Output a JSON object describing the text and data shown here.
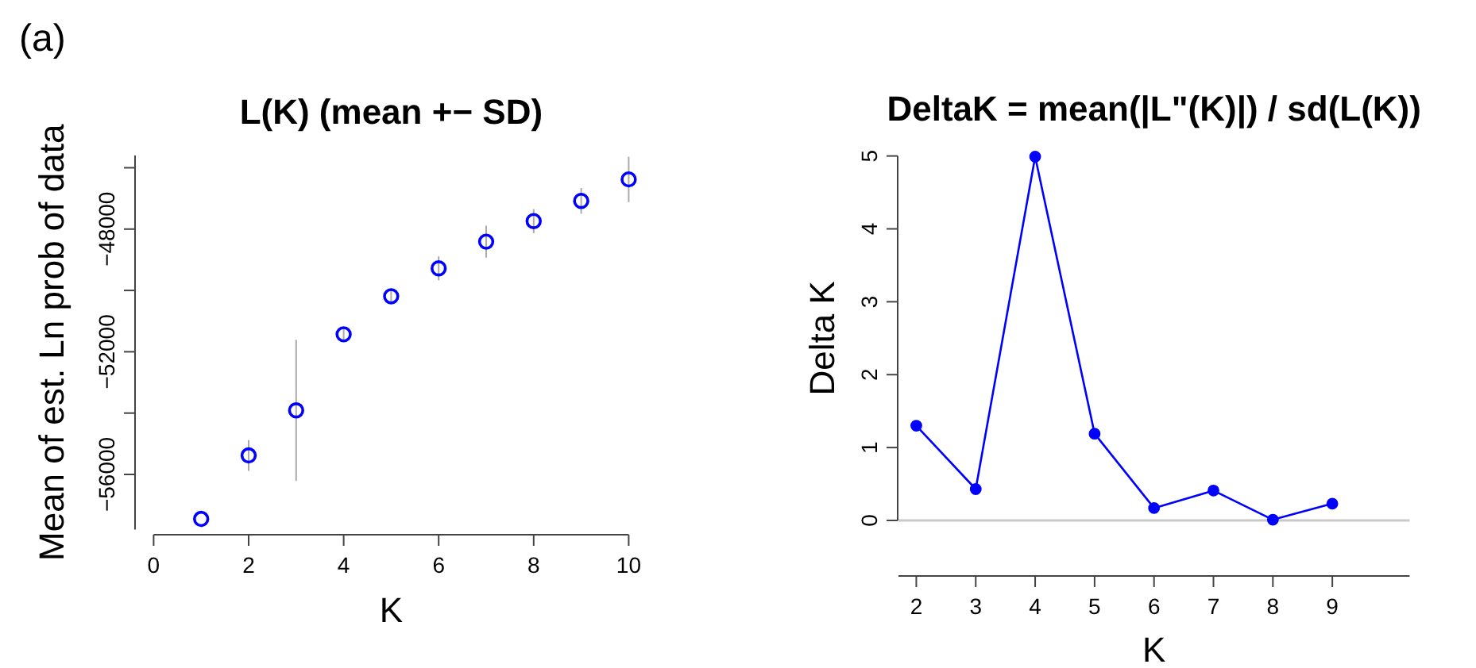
{
  "chart_data": [
    {
      "type": "scatter",
      "title": "L(K) (mean +− SD)",
      "xlabel": "K",
      "ylabel": "Mean of est. Ln prob of data",
      "annotations": [
        "(a)"
      ],
      "x": [
        1,
        2,
        3,
        4,
        5,
        6,
        7,
        8,
        9,
        10
      ],
      "series": [
        {
          "color": "#0000ff",
          "values": [
            -57450,
            -55380,
            -53910,
            -51430,
            -50190,
            -49280,
            -48410,
            -47740,
            -47080,
            -46380
          ],
          "errors": [
            null,
            500,
            2300,
            200,
            250,
            390,
            520,
            390,
            420,
            740
          ]
        }
      ],
      "marker": "circle",
      "xlim": [
        0,
        10
      ],
      "xticks": [
        0,
        2,
        4,
        6,
        8,
        10
      ],
      "ylim": [
        -57800,
        -45600
      ],
      "yticks": [
        {
          "value": -46000,
          "label": null
        },
        -48000,
        {
          "value": -50000,
          "label": null
        },
        -52000,
        {
          "value": -54000,
          "label": null
        },
        -56000
      ],
      "grid": false
    },
    {
      "type": "line",
      "title": "DeltaK = mean(|L\"(K)|) / sd(L(K))",
      "xlabel": "K",
      "ylabel": "Delta K",
      "x": [
        2,
        3,
        4,
        5,
        6,
        7,
        8,
        9
      ],
      "series": [
        {
          "color": "#0000ff",
          "values": [
            1.3,
            0.43,
            4.99,
            1.19,
            0.17,
            0.41,
            0.01,
            0.23
          ]
        }
      ],
      "marker": "circle",
      "line_style": "solid",
      "xlim": [
        1.7,
        10.3
      ],
      "xticks": [
        2,
        3,
        4,
        5,
        6,
        7,
        8,
        9
      ],
      "ylim": [
        0,
        5
      ],
      "yticks": [
        0,
        1,
        2,
        3,
        4,
        5
      ],
      "ref_lines": [
        {
          "axis": "y",
          "value": 0,
          "color": "#c8c8c8"
        }
      ],
      "grid": false
    }
  ]
}
